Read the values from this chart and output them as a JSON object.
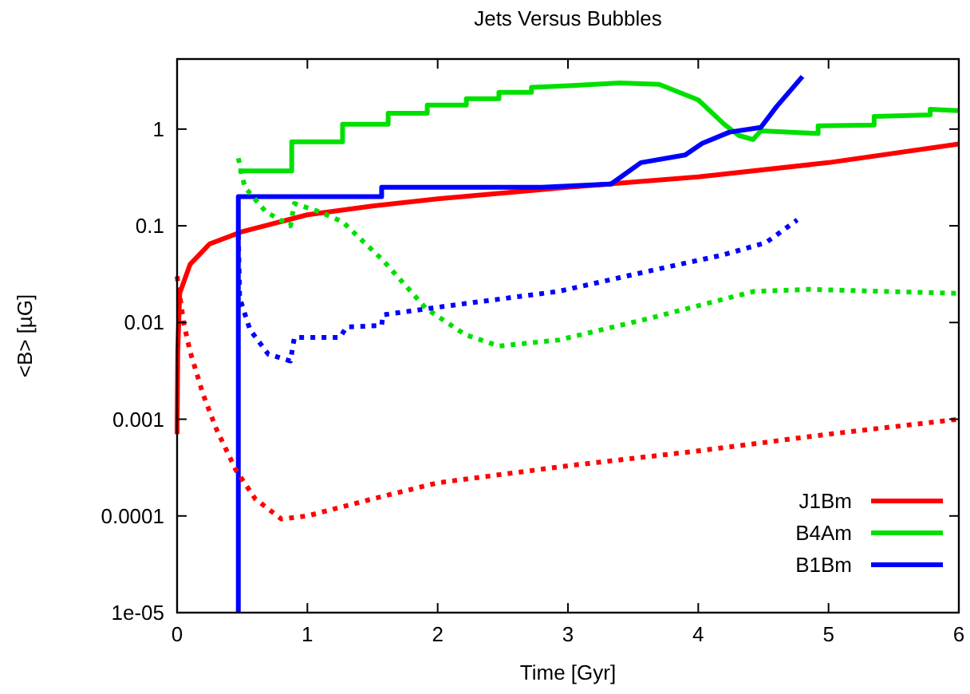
{
  "chart_data": {
    "type": "line",
    "title": "Jets Versus Bubbles",
    "xlabel": "Time [Gyr]",
    "ylabel": "<B> [µG]",
    "log": "y",
    "xlim": [
      0,
      6
    ],
    "ylim": [
      1e-05,
      5.3
    ],
    "xticks": [
      0,
      1,
      2,
      3,
      4,
      5,
      6
    ],
    "yticks": [
      {
        "value": 1e-05,
        "label": "1e-05"
      },
      0.0001,
      0.001,
      0.01,
      0.1,
      1
    ],
    "legend": "bottom right",
    "grid": false,
    "series": [
      {
        "name": "J1Bm",
        "color": "#ff0000",
        "line_style": "solid",
        "x": [
          0,
          0.005,
          0.02,
          0.1,
          0.25,
          0.5,
          1,
          1.5,
          2,
          3,
          4,
          5,
          6
        ],
        "values": [
          0.0007,
          0.005,
          0.02,
          0.04,
          0.065,
          0.087,
          0.13,
          0.16,
          0.19,
          0.25,
          0.32,
          0.45,
          0.7
        ]
      },
      {
        "name": "B4Am",
        "color": "#00e000",
        "line_style": "solid",
        "x": [
          0.47,
          0.88,
          0.88,
          1.27,
          1.27,
          1.62,
          1.62,
          1.92,
          1.92,
          2.22,
          2.22,
          2.47,
          2.47,
          2.72,
          2.72,
          3.0,
          3.4,
          3.7,
          4.0,
          4.2,
          4.31,
          4.42,
          4.48,
          4.92,
          4.92,
          5.35,
          5.35,
          5.78,
          5.78,
          6
        ],
        "values": [
          0.37,
          0.37,
          0.74,
          0.74,
          1.12,
          1.12,
          1.46,
          1.46,
          1.77,
          1.77,
          2.06,
          2.06,
          2.4,
          2.4,
          2.7,
          2.8,
          3.0,
          2.9,
          2.0,
          1.12,
          0.86,
          0.78,
          0.96,
          0.9,
          1.08,
          1.1,
          1.35,
          1.4,
          1.6,
          1.55
        ]
      },
      {
        "name": "B1Bm",
        "color": "#0000ff",
        "line_style": "solid",
        "x": [
          0.47,
          0.47,
          1.57,
          1.57,
          2.8,
          3.33,
          3.56,
          3.9,
          4.03,
          4.24,
          4.48,
          4.6,
          4.8
        ],
        "values": [
          1e-05,
          0.2,
          0.2,
          0.25,
          0.25,
          0.27,
          0.45,
          0.54,
          0.71,
          0.93,
          1.04,
          1.7,
          3.5
        ]
      },
      {
        "color": "#ff0000",
        "line_style": "dotted",
        "x": [
          0,
          0.05,
          0.1,
          0.2,
          0.3,
          0.45,
          0.6,
          0.8,
          1,
          1.5,
          2,
          3,
          4,
          5,
          6
        ],
        "values": [
          0.03,
          0.01,
          0.005,
          0.0018,
          0.0008,
          0.0003,
          0.00015,
          9.3e-05,
          0.0001,
          0.00015,
          0.00022,
          0.00033,
          0.00047,
          0.0007,
          0.001
        ]
      },
      {
        "color": "#00e000",
        "line_style": "dotted",
        "x": [
          0.47,
          0.52,
          0.68,
          0.87,
          0.9,
          1.09,
          1.27,
          1.58,
          1.91,
          2.21,
          2.47,
          2.93,
          3.62,
          4.43,
          4.85,
          6
        ],
        "values": [
          0.5,
          0.25,
          0.14,
          0.1,
          0.17,
          0.14,
          0.11,
          0.044,
          0.014,
          0.0075,
          0.0057,
          0.0066,
          0.011,
          0.021,
          0.022,
          0.02
        ]
      },
      {
        "color": "#0000ff",
        "line_style": "dotted",
        "x": [
          0.47,
          0.48,
          0.56,
          0.7,
          0.87,
          0.9,
          1.25,
          1.3,
          1.57,
          1.58,
          2.1,
          2.93,
          3.62,
          4.19,
          4.52,
          4.76
        ],
        "values": [
          0.08,
          0.018,
          0.0084,
          0.0047,
          0.004,
          0.007,
          0.007,
          0.009,
          0.0093,
          0.012,
          0.015,
          0.021,
          0.034,
          0.05,
          0.067,
          0.115
        ]
      }
    ]
  }
}
